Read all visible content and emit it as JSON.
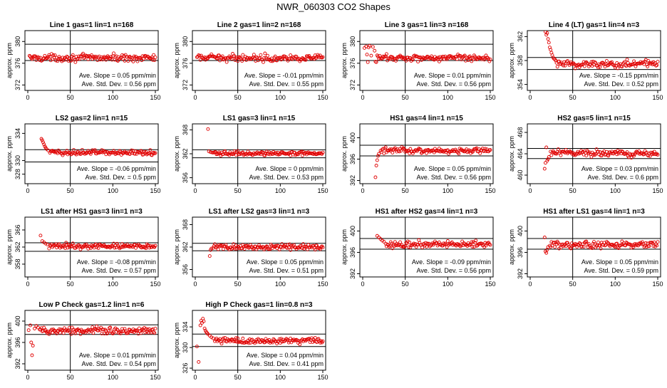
{
  "title": "NWR_060303  CO2 Shapes",
  "panel_ylabel": "approx. ppm",
  "colors": {
    "points": "#e00000",
    "frame": "#000000",
    "reference": "#000000"
  },
  "chart_data": [
    {
      "type": "scatter",
      "title": "Line 1 gas=1 lin=1 n=168",
      "xlim": [
        0,
        150
      ],
      "xticks": [
        0,
        50,
        100,
        150
      ],
      "ylim": [
        371,
        382
      ],
      "yticks": [
        372,
        376,
        380
      ],
      "ref_lines": [
        376.5,
        379.5
      ],
      "vline_x": 50,
      "baseline": 377,
      "noise": 0.3,
      "transient": [],
      "start": 2,
      "slope_label": "Ave. Slope = 0.05  ppm/min",
      "std_label": "Ave. Std. Dev. = 0.56  ppm"
    },
    {
      "type": "scatter",
      "title": "Line 2 gas=1 lin=2 n=168",
      "xlim": [
        0,
        150
      ],
      "xticks": [
        0,
        50,
        100,
        150
      ],
      "ylim": [
        371,
        382
      ],
      "yticks": [
        372,
        376,
        380
      ],
      "ref_lines": [
        376.5,
        379.5
      ],
      "vline_x": 50,
      "baseline": 377,
      "noise": 0.3,
      "transient": [],
      "start": 2,
      "slope_label": "Ave. Slope = -0.01  ppm/min",
      "std_label": "Ave. Std. Dev. = 0.55  ppm"
    },
    {
      "type": "scatter",
      "title": "Line 3 gas=1 lin=3 n=168",
      "xlim": [
        0,
        150
      ],
      "xticks": [
        0,
        50,
        100,
        150
      ],
      "ylim": [
        371,
        382
      ],
      "yticks": [
        372,
        376,
        380
      ],
      "ref_lines": [
        376.5,
        379.5
      ],
      "vline_x": 50,
      "baseline": 377,
      "noise": 0.3,
      "transient": [
        [
          2,
          378.8
        ],
        [
          4,
          379.1
        ],
        [
          5,
          377.6
        ],
        [
          6,
          376.2
        ],
        [
          7,
          378.9
        ],
        [
          8,
          379.2
        ],
        [
          10,
          377.4
        ],
        [
          12,
          379
        ],
        [
          14,
          378.3
        ],
        [
          15,
          376.3
        ],
        [
          16,
          376.2
        ]
      ],
      "start": 17,
      "slope_label": "Ave. Slope = 0.01  ppm/min",
      "std_label": "Ave. Std. Dev. = 0.56  ppm"
    },
    {
      "type": "scatter",
      "title": "Line 4 (LT) gas=1 lin=4 n=3",
      "xlim": [
        0,
        150
      ],
      "xticks": [
        0,
        50,
        100,
        150
      ],
      "ylim": [
        353,
        363
      ],
      "yticks": [
        354,
        358,
        362
      ],
      "ref_lines": [
        356.5,
        358.5
      ],
      "vline_x": 50,
      "baseline": 357.4,
      "noise": 0.35,
      "transient": [
        [
          18,
          362.8
        ],
        [
          19,
          362.3
        ],
        [
          20,
          362.6
        ],
        [
          21,
          361.6
        ],
        [
          22,
          361
        ],
        [
          23,
          360.2
        ],
        [
          24,
          359.8
        ],
        [
          25,
          359.3
        ],
        [
          26,
          358.9
        ],
        [
          27,
          358.5
        ],
        [
          28,
          358.3
        ],
        [
          29,
          358.2
        ],
        [
          30,
          358
        ]
      ],
      "start": 31,
      "slope_label": "Ave. Slope = -0.15  ppm/min",
      "std_label": "Ave. Std. Dev. = 0.52  ppm"
    },
    {
      "type": "scatter",
      "title": "LS2 gas=2 lin=1 n=15",
      "xlim": [
        0,
        150
      ],
      "xticks": [
        0,
        50,
        100,
        150
      ],
      "ylim": [
        326.6,
        335.4
      ],
      "yticks": [
        328,
        330,
        334
      ],
      "ref_lines": [
        329.8,
        331.6
      ],
      "vline_x": 50,
      "baseline": 331.2,
      "noise": 0.2,
      "transient": [
        [
          16,
          333.2
        ],
        [
          17,
          333
        ],
        [
          18,
          332.7
        ],
        [
          19,
          332.4
        ],
        [
          20,
          332.1
        ],
        [
          21,
          331.9
        ],
        [
          22,
          331.7
        ],
        [
          24,
          331.5
        ]
      ],
      "start": 26,
      "slope_label": "Ave. Slope = -0.06  ppm/min",
      "std_label": "Ave. Std. Dev. = 0.5  ppm"
    },
    {
      "type": "scatter",
      "title": "LS1 gas=3 lin=1 n=15",
      "xlim": [
        0,
        150
      ],
      "xticks": [
        0,
        50,
        100,
        150
      ],
      "ylim": [
        354.5,
        369.5
      ],
      "yticks": [
        356,
        362,
        368
      ],
      "ref_lines": [
        361,
        363
      ],
      "vline_x": 50,
      "baseline": 362.1,
      "noise": 0.25,
      "transient": [
        [
          15,
          368.2
        ],
        [
          16,
          362.6
        ],
        [
          18,
          362.4
        ]
      ],
      "start": 20,
      "slope_label": "Ave. Slope = 0  ppm/min",
      "std_label": "Ave. Std. Dev. = 0.53  ppm"
    },
    {
      "type": "scatter",
      "title": "HS1 gas=4 lin=1 n=15",
      "xlim": [
        0,
        150
      ],
      "xticks": [
        0,
        50,
        100,
        150
      ],
      "ylim": [
        391.4,
        402.6
      ],
      "yticks": [
        392,
        396,
        400
      ],
      "ref_lines": [
        396.6,
        398.6
      ],
      "vline_x": 50,
      "baseline": 397.6,
      "noise": 0.25,
      "transient": [
        [
          15,
          392.6
        ],
        [
          16,
          394.8
        ],
        [
          17,
          395.8
        ],
        [
          18,
          396.6
        ],
        [
          19,
          397
        ]
      ],
      "start": 21,
      "slope_label": "Ave. Slope = 0.05  ppm/min",
      "std_label": "Ave. Std. Dev. = 0.56  ppm"
    },
    {
      "type": "scatter",
      "title": "HS2 gas=5 lin=1 n=15",
      "xlim": [
        0,
        150
      ],
      "xticks": [
        0,
        50,
        100,
        150
      ],
      "ylim": [
        458.4,
        469.6
      ],
      "yticks": [
        460,
        464,
        468
      ],
      "ref_lines": [
        463.1,
        465
      ],
      "vline_x": 50,
      "baseline": 464.1,
      "noise": 0.3,
      "transient": [
        [
          17,
          461.2
        ],
        [
          18,
          462.3
        ],
        [
          19,
          465.2
        ],
        [
          20,
          462.7
        ],
        [
          21,
          463
        ],
        [
          22,
          463.4
        ]
      ],
      "start": 24,
      "slope_label": "Ave. Slope = 0.03  ppm/min",
      "std_label": "Ave. Std. Dev. = 0.6  ppm"
    },
    {
      "type": "scatter",
      "title": "LS1 after HS1 gas=3 lin=1 n=3",
      "xlim": [
        0,
        150
      ],
      "xticks": [
        0,
        50,
        100,
        150
      ],
      "ylim": [
        355,
        369
      ],
      "yticks": [
        358,
        362,
        366
      ],
      "ref_lines": [
        361,
        363
      ],
      "vline_x": 50,
      "baseline": 362.2,
      "noise": 0.3,
      "transient": [
        [
          15,
          364.7
        ],
        [
          17,
          363.4
        ],
        [
          19,
          363.1
        ],
        [
          21,
          362.8
        ],
        [
          23,
          362.6
        ]
      ],
      "start": 25,
      "slope_label": "Ave. Slope = -0.08  ppm/min",
      "std_label": "Ave. Std. Dev. = 0.57  ppm"
    },
    {
      "type": "scatter",
      "title": "LS1 after LS2 gas=3 lin=1 n=3",
      "xlim": [
        0,
        150
      ],
      "xticks": [
        0,
        50,
        100,
        150
      ],
      "ylim": [
        354,
        370
      ],
      "yticks": [
        356,
        362,
        368
      ],
      "ref_lines": [
        361,
        363
      ],
      "vline_x": 50,
      "baseline": 362,
      "noise": 0.35,
      "transient": [
        [
          17,
          359.6
        ],
        [
          18,
          361.2
        ],
        [
          19,
          361.6
        ]
      ],
      "start": 21,
      "slope_label": "Ave. Slope = 0.05  ppm/min",
      "std_label": "Ave. Std. Dev. = 0.51  ppm"
    },
    {
      "type": "scatter",
      "title": "HS1 after HS2 gas=4 lin=1 n=3",
      "xlim": [
        0,
        150
      ],
      "xticks": [
        0,
        50,
        100,
        150
      ],
      "ylim": [
        391.4,
        402.6
      ],
      "yticks": [
        392,
        396,
        400
      ],
      "ref_lines": [
        396.6,
        398.6
      ],
      "vline_x": 50,
      "baseline": 397.5,
      "noise": 0.3,
      "transient": [
        [
          17,
          399.1
        ],
        [
          19,
          398.8
        ],
        [
          21,
          398.5
        ],
        [
          23,
          398.2
        ],
        [
          25,
          398
        ]
      ],
      "start": 27,
      "slope_label": "Ave. Slope = -0.09  ppm/min",
      "std_label": "Ave. Std. Dev. = 0.56  ppm"
    },
    {
      "type": "scatter",
      "title": "HS1 after LS1 gas=4 lin=1 n=3",
      "xlim": [
        0,
        150
      ],
      "xticks": [
        0,
        50,
        100,
        150
      ],
      "ylim": [
        391.4,
        402.6
      ],
      "yticks": [
        392,
        396,
        400
      ],
      "ref_lines": [
        396.6,
        398.6
      ],
      "vline_x": 50,
      "baseline": 397.4,
      "noise": 0.3,
      "transient": [
        [
          17,
          398.8
        ],
        [
          18,
          396.2
        ],
        [
          19,
          395.9
        ],
        [
          20,
          396.5
        ],
        [
          21,
          397
        ]
      ],
      "start": 23,
      "slope_label": "Ave. Slope = 0.05  ppm/min",
      "std_label": "Ave. Std. Dev. = 0.59  ppm"
    },
    {
      "type": "scatter",
      "title": "Low P Check gas=1.2 lin=1 n=6",
      "xlim": [
        0,
        150
      ],
      "xticks": [
        0,
        50,
        100,
        150
      ],
      "ylim": [
        390.8,
        402
      ],
      "yticks": [
        392,
        396,
        400
      ],
      "ref_lines": [
        397.5,
        399.3
      ],
      "vline_x": 50,
      "baseline": 398.2,
      "noise": 0.3,
      "transient": [
        [
          1,
          398.3
        ],
        [
          3,
          399.2
        ],
        [
          4,
          396
        ],
        [
          5,
          393.6
        ],
        [
          6,
          395.4
        ],
        [
          8,
          398.6
        ],
        [
          10,
          399.1
        ],
        [
          12,
          398.8
        ]
      ],
      "start": 14,
      "slope_label": "Ave. Slope = 0.01  ppm/min",
      "std_label": "Ave. Std. Dev. = 0.54  ppm"
    },
    {
      "type": "scatter",
      "title": "High P Check gas=1 lin=0.8 n=3",
      "xlim": [
        0,
        150
      ],
      "xticks": [
        0,
        50,
        100,
        150
      ],
      "ylim": [
        325.6,
        337.2
      ],
      "yticks": [
        326,
        330,
        334
      ],
      "ref_lines": [
        330.2,
        332.6
      ],
      "vline_x": 50,
      "baseline": 331.3,
      "noise": 0.3,
      "transient": [
        [
          2,
          330.2
        ],
        [
          4,
          327.2
        ],
        [
          6,
          334.3
        ],
        [
          7,
          335.2
        ],
        [
          8,
          334.8
        ],
        [
          9,
          335.6
        ],
        [
          10,
          335.1
        ],
        [
          11,
          333.7
        ],
        [
          12,
          333.3
        ],
        [
          13,
          333
        ],
        [
          14,
          332.8
        ],
        [
          15,
          332.6
        ],
        [
          17,
          332.3
        ],
        [
          19,
          332
        ],
        [
          21,
          331.8
        ]
      ],
      "start": 23,
      "slope_label": "Ave. Slope = 0.04  ppm/min",
      "std_label": "Ave. Std. Dev. = 0.41  ppm"
    }
  ]
}
